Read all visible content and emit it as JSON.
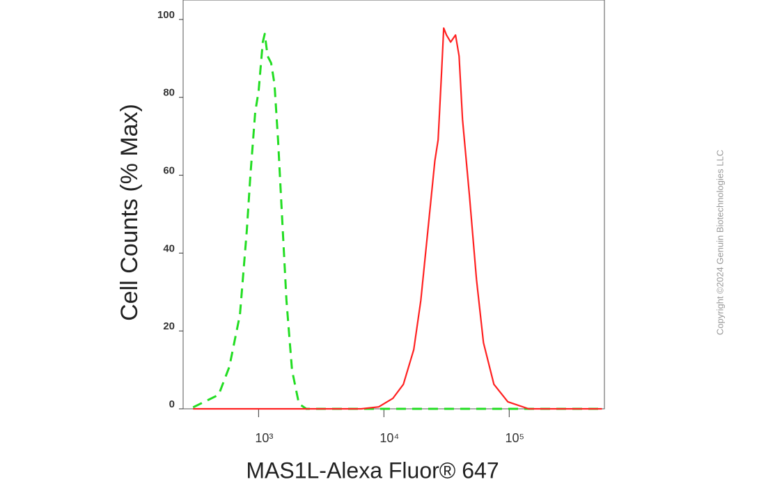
{
  "chart_data": {
    "type": "line",
    "y_label": "Cell Counts (% Max)",
    "x_label": "MAS1L-Alexa Fluor® 647",
    "watermark": "Copyright ©2024 Genuin Biotechnologies LLC",
    "xscale": "log",
    "xlim": [
      250,
      575000
    ],
    "ylim": [
      0,
      105
    ],
    "xticks": [
      {
        "value": 1000,
        "label": "10³"
      },
      {
        "value": 10000,
        "label": "10⁴"
      },
      {
        "value": 100000,
        "label": "10⁵"
      }
    ],
    "yticks": [
      0,
      20,
      40,
      60,
      80,
      100
    ],
    "series": [
      {
        "color": "#22dd22",
        "dash": true,
        "x": [
          300,
          480,
          585,
          710,
          805,
          860,
          940,
          1000,
          1080,
          1120,
          1180,
          1260,
          1340,
          1430,
          1550,
          1670,
          1850,
          2100,
          2400,
          10000,
          100000,
          550000
        ],
        "values": [
          0.4,
          3.6,
          10.8,
          24.2,
          45.7,
          60,
          76.2,
          81.6,
          94.2,
          96.3,
          90.6,
          88.8,
          83.4,
          69.1,
          47.5,
          27.8,
          9.9,
          1.3,
          0,
          0,
          0,
          0
        ]
      },
      {
        "color": "#ff2020",
        "dash": false,
        "x": [
          300,
          6600,
          9100,
          11800,
          14300,
          17300,
          19700,
          22400,
          25500,
          27100,
          28900,
          30000,
          31600,
          34100,
          37300,
          39800,
          42400,
          48200,
          54800,
          62300,
          75500,
          97500,
          143000,
          550000
        ],
        "values": [
          0,
          0,
          0.5,
          2.7,
          6.3,
          15.2,
          27.8,
          45.7,
          63.7,
          69.1,
          87,
          97.8,
          96,
          94.2,
          96,
          90.6,
          74.4,
          54.7,
          33.2,
          17,
          6.3,
          1.8,
          0,
          0
        ]
      }
    ]
  }
}
